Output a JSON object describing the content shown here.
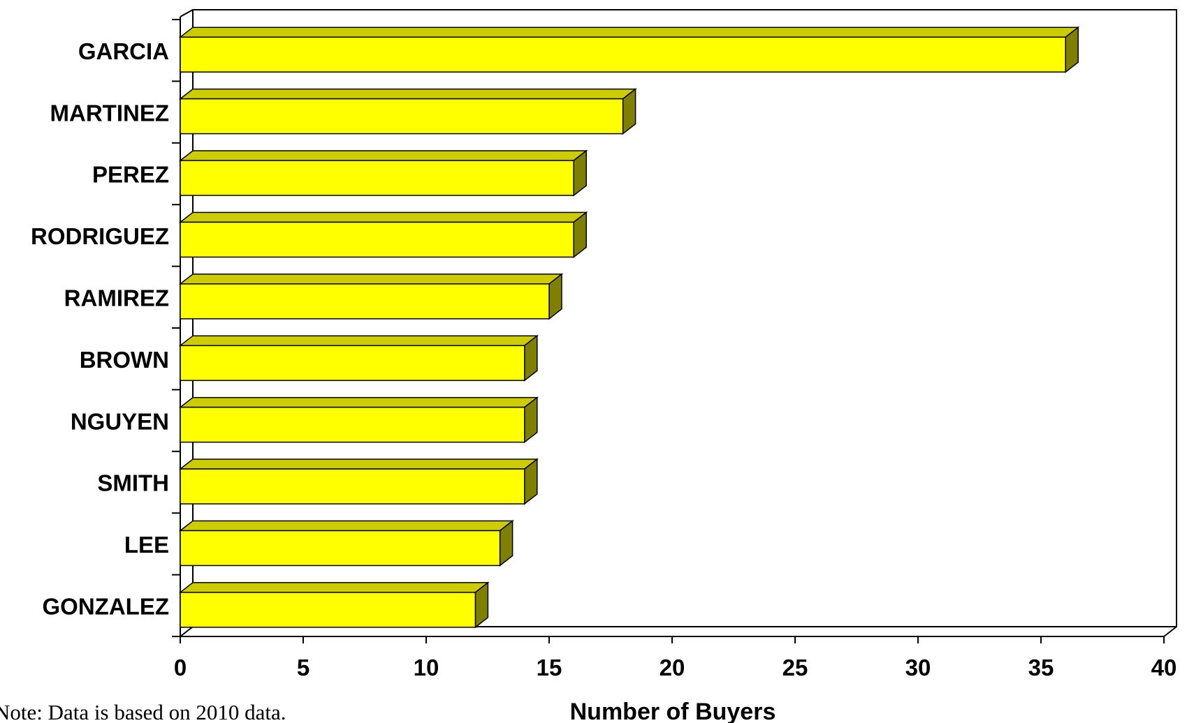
{
  "chart_data": {
    "type": "bar",
    "orientation": "horizontal",
    "style": "3d",
    "categories": [
      "GARCIA",
      "MARTINEZ",
      "PEREZ",
      "RODRIGUEZ",
      "RAMIREZ",
      "BROWN",
      "NGUYEN",
      "SMITH",
      "LEE",
      "GONZALEZ"
    ],
    "values": [
      36,
      18,
      16,
      16,
      15,
      14,
      14,
      14,
      13,
      12
    ],
    "xlabel": "Number of Buyers",
    "ylabel": "",
    "xlim": [
      0,
      40
    ],
    "xticks": [
      0,
      5,
      10,
      15,
      20,
      25,
      30,
      35,
      40
    ],
    "grid": false,
    "legend": "none",
    "annotations": [
      "Note:  Data is based on 2010 data."
    ],
    "colors": {
      "bar_front": "#ffff00",
      "bar_top": "#cccc00",
      "bar_side": "#808000",
      "outline": "#000000"
    }
  }
}
